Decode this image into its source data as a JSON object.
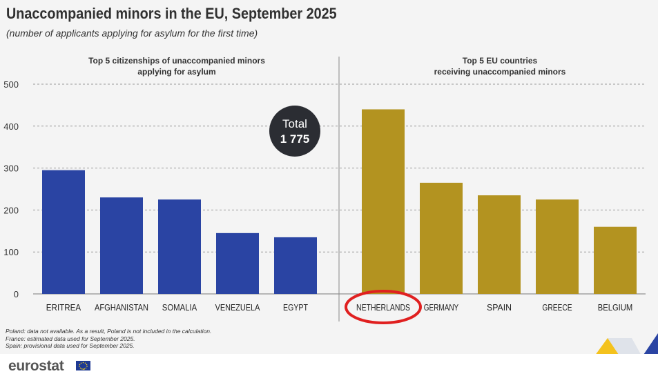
{
  "title": "Unaccompanied minors in the EU, September 2025",
  "subtitle": "(number of applicants applying for asylum for the first time)",
  "chart_data": [
    {
      "type": "bar",
      "title": "Top 5 citizenships of unaccompanied minors applying for asylum",
      "title_lines": [
        "Top 5 citizenships of unaccompanied minors",
        "applying for asylum"
      ],
      "categories": [
        "ERITREA",
        "AFGHANISTAN",
        "SOMALIA",
        "VENEZUELA",
        "EGYPT"
      ],
      "values": [
        295,
        230,
        225,
        145,
        135
      ],
      "ylim": [
        0,
        500
      ],
      "yticks": [
        0,
        100,
        200,
        300,
        400,
        500
      ],
      "color": "#2a44a3",
      "total_label": "Total",
      "total_value": "1 775"
    },
    {
      "type": "bar",
      "title": "Top 5 EU countries receiving unaccompanied minors",
      "title_lines": [
        "Top 5 EU countries",
        "receiving unaccompanied minors"
      ],
      "categories": [
        "NETHERLANDS",
        "GERMANY",
        "SPAIN",
        "GREECE",
        "BELGIUM"
      ],
      "values": [
        440,
        265,
        235,
        225,
        160
      ],
      "ylim": [
        0,
        500
      ],
      "color": "#b39320",
      "highlighted": "NETHERLANDS",
      "highlight_color": "#e02020"
    }
  ],
  "notes": [
    "Poland: data not available. As a result, Poland is not included in the calculation.",
    "France: estimated  data used for September 2025.",
    "Spain: provisional data used for September 2025."
  ],
  "logo": {
    "text": "eurostat",
    "flag_color": "#1f3a93",
    "star_color": "#ffd617"
  },
  "colors": {
    "grid": "#9a9a9a",
    "divider": "#888888",
    "badge": "#2b2d33"
  }
}
